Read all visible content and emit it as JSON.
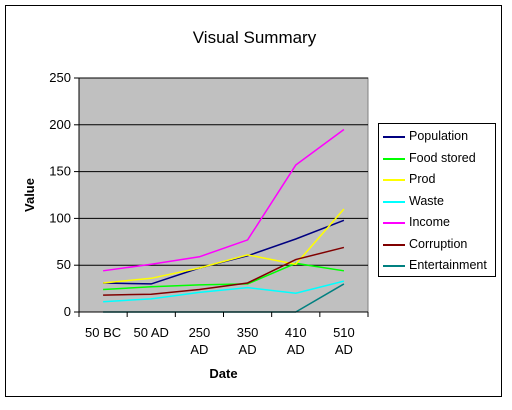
{
  "chart_data": {
    "type": "line",
    "title": "Visual Summary",
    "xlabel": "Date",
    "ylabel": "Value",
    "categories": [
      "50 BC",
      "50 AD",
      "250 AD",
      "350 AD",
      "410 AD",
      "510 AD"
    ],
    "ylim": [
      0,
      250
    ],
    "yticks": [
      "0",
      "50",
      "100",
      "150",
      "200",
      "250"
    ],
    "grid": true,
    "legend_position": "right",
    "plot_background": "#c0c0c0",
    "series": [
      {
        "name": "Population",
        "color": "#000080",
        "values": [
          31,
          30,
          47,
          60,
          78,
          98
        ]
      },
      {
        "name": "Food stored",
        "color": "#00ff00",
        "values": [
          24,
          27,
          29,
          30,
          52,
          44
        ]
      },
      {
        "name": "Prod",
        "color": "#ffff00",
        "values": [
          31,
          36,
          47,
          61,
          51,
          110
        ]
      },
      {
        "name": "Waste",
        "color": "#00ffff",
        "values": [
          11,
          14,
          21,
          26,
          20,
          33
        ]
      },
      {
        "name": "Income",
        "color": "#ff00ff",
        "values": [
          44,
          51,
          59,
          77,
          157,
          195
        ]
      },
      {
        "name": "Corruption",
        "color": "#800000",
        "values": [
          18,
          19,
          24,
          31,
          56,
          69
        ]
      },
      {
        "name": "Entertainment",
        "color": "#008080",
        "values": [
          0,
          0,
          0,
          0,
          0,
          30
        ]
      }
    ]
  }
}
